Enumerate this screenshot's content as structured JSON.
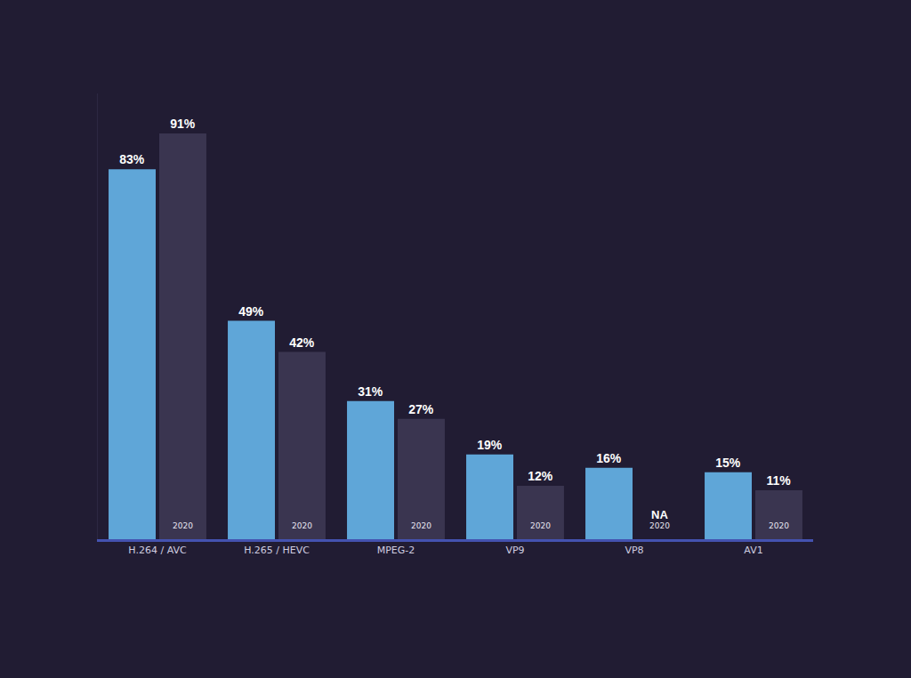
{
  "chart_data": {
    "type": "bar",
    "categories": [
      "H.264 / AVC",
      "H.265 / HEVC",
      "MPEG-2",
      "VP9",
      "VP8",
      "AV1"
    ],
    "series": [
      {
        "color": "#5fa6d8",
        "values": [
          83,
          49,
          31,
          19,
          16,
          15
        ],
        "value_labels": [
          "83%",
          "49%",
          "31%",
          "19%",
          "16%",
          "15%"
        ]
      },
      {
        "name": "2020",
        "color": "#3a3550",
        "values": [
          91,
          42,
          27,
          12,
          null,
          11
        ],
        "value_labels": [
          "91%",
          "42%",
          "27%",
          "12%",
          "NA",
          "11%"
        ]
      }
    ],
    "ylim": [
      0,
      100
    ],
    "data_labels": true,
    "tick_labels": "x",
    "grid": false
  }
}
